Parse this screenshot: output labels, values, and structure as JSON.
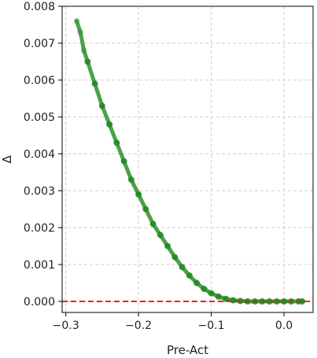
{
  "chart_data": {
    "type": "scatter",
    "title": "",
    "xlabel": "Pre-Act",
    "ylabel": "Δ",
    "xlim": [
      -0.305,
      0.04
    ],
    "ylim": [
      -0.0003,
      0.008
    ],
    "xticks": [
      -0.3,
      -0.2,
      -0.1,
      0.0
    ],
    "xtick_labels": [
      "−0.3",
      "−0.2",
      "−0.1",
      "0.0"
    ],
    "yticks": [
      0.0,
      0.001,
      0.002,
      0.003,
      0.004,
      0.005,
      0.006,
      0.007,
      0.008
    ],
    "ytick_labels": [
      "0.000",
      "0.001",
      "0.002",
      "0.003",
      "0.004",
      "0.005",
      "0.006",
      "0.007",
      "0.008"
    ],
    "grid": true,
    "series": [
      {
        "color": "#1f8a1f",
        "x": [
          -0.285,
          -0.28,
          -0.275,
          -0.27,
          -0.26,
          -0.25,
          -0.24,
          -0.23,
          -0.22,
          -0.21,
          -0.2,
          -0.19,
          -0.18,
          -0.17,
          -0.16,
          -0.15,
          -0.14,
          -0.13,
          -0.12,
          -0.11,
          -0.1,
          -0.09,
          -0.08,
          -0.07,
          -0.06,
          -0.05,
          -0.04,
          -0.03,
          -0.02,
          -0.01,
          0.0,
          0.01,
          0.02,
          0.025
        ],
        "y": [
          0.0076,
          0.0073,
          0.0068,
          0.0065,
          0.0059,
          0.0053,
          0.0048,
          0.0043,
          0.0038,
          0.0033,
          0.0029,
          0.0025,
          0.0021,
          0.0018,
          0.0015,
          0.0012,
          0.00093,
          0.0007,
          0.0005,
          0.00034,
          0.00022,
          0.00013,
          7e-05,
          3e-05,
          1e-05,
          0.0,
          0.0,
          0.0,
          0.0,
          0.0,
          0.0,
          0.0,
          0.0,
          0.0
        ]
      }
    ],
    "reference_line": {
      "y": 0.0,
      "color": "#e02020",
      "style": "dashed"
    }
  }
}
